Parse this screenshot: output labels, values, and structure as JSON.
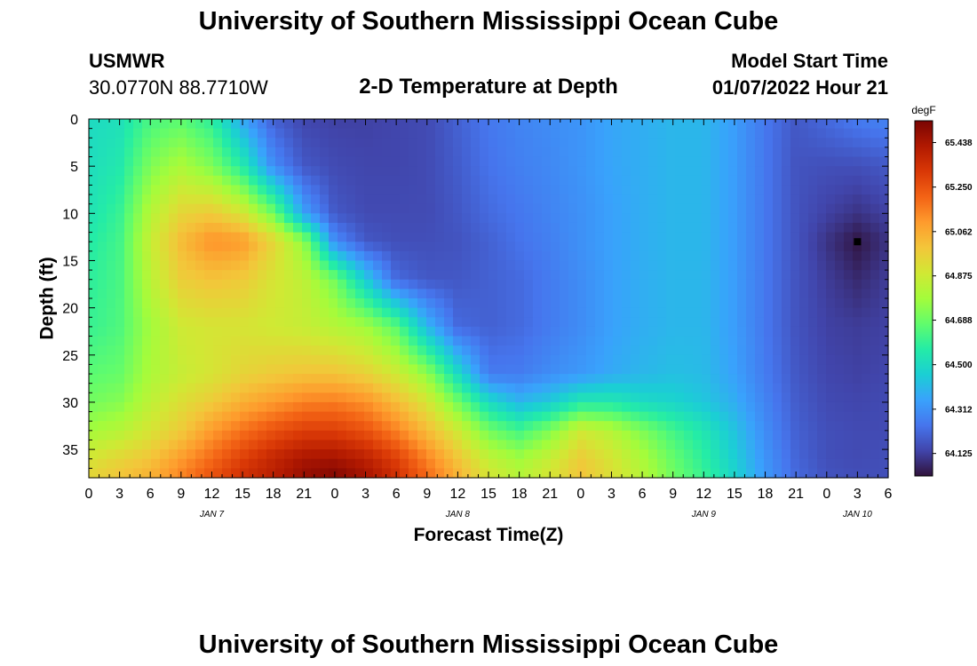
{
  "header": {
    "title": "University of Southern Mississippi Ocean Cube",
    "station": "USMWR",
    "coords": "30.0770N  88.7710W",
    "plot_title": "2-D Temperature at Depth",
    "model_label": "Model Start Time",
    "model_time": "01/07/2022 Hour 21"
  },
  "footer": {
    "title": "University of Southern Mississippi Ocean Cube"
  },
  "chart_data": {
    "type": "heatmap",
    "title": "2-D Temperature at Depth",
    "xlabel": "Forecast Time(Z)",
    "ylabel": "Depth (ft)",
    "x_tick_labels": [
      "0",
      "3",
      "6",
      "9",
      "12",
      "15",
      "18",
      "21",
      "0",
      "3",
      "6",
      "9",
      "12",
      "15",
      "18",
      "21",
      "0",
      "3",
      "6",
      "9",
      "12",
      "15",
      "18",
      "21",
      "0",
      "3",
      "6"
    ],
    "x_hours": [
      0,
      78
    ],
    "date_labels": [
      {
        "text": "JAN 7",
        "hour": 12
      },
      {
        "text": "JAN 8",
        "hour": 36
      },
      {
        "text": "JAN 9",
        "hour": 60
      },
      {
        "text": "JAN 10",
        "hour": 75
      }
    ],
    "y_ticks": [
      0,
      5,
      10,
      15,
      20,
      25,
      30,
      35
    ],
    "y_range": [
      0,
      38
    ],
    "y_reversed": true,
    "colorbar": {
      "unit": "degF",
      "range": [
        64.03,
        65.53
      ],
      "tick_values": [
        64.125,
        64.312,
        64.5,
        64.688,
        64.875,
        65.062,
        65.25,
        65.438
      ],
      "tick_labels": [
        "64.125",
        "64.312",
        "64.500",
        "64.688",
        "64.875",
        "65.062",
        "65.250",
        "65.438"
      ],
      "stops": [
        "#30123b",
        "#4145ab",
        "#4675ed",
        "#39a2fc",
        "#1bcfd4",
        "#24eca6",
        "#61fc6c",
        "#a4fc3b",
        "#d1e834",
        "#f3c63a",
        "#fe9b2d",
        "#f36315",
        "#d93806",
        "#b11901",
        "#7a0403"
      ]
    },
    "marker": {
      "hour": 75,
      "depth": 13
    },
    "depths": [
      0,
      5,
      10,
      13,
      17,
      22,
      27,
      30,
      33,
      36,
      38
    ],
    "columns": [
      {
        "hour": 0,
        "temps": [
          64.5,
          64.51,
          64.53,
          64.56,
          64.58,
          64.6,
          64.66,
          64.7,
          64.78,
          64.9,
          64.95
        ]
      },
      {
        "hour": 3,
        "temps": [
          64.52,
          64.55,
          64.6,
          64.62,
          64.63,
          64.64,
          64.68,
          64.73,
          64.82,
          64.95,
          65.0
        ]
      },
      {
        "hour": 6,
        "temps": [
          64.63,
          64.72,
          64.82,
          64.86,
          64.83,
          64.78,
          64.8,
          64.84,
          64.9,
          65.0,
          65.05
        ]
      },
      {
        "hour": 9,
        "temps": [
          64.66,
          64.8,
          64.95,
          65.02,
          64.97,
          64.88,
          64.86,
          64.92,
          64.98,
          65.1,
          65.15
        ]
      },
      {
        "hour": 12,
        "temps": [
          64.58,
          64.72,
          64.98,
          65.12,
          65.0,
          64.9,
          64.9,
          64.98,
          65.1,
          65.2,
          65.25
        ]
      },
      {
        "hour": 15,
        "temps": [
          64.36,
          64.56,
          64.9,
          65.1,
          64.98,
          64.9,
          64.95,
          65.05,
          65.18,
          65.3,
          65.35
        ]
      },
      {
        "hour": 18,
        "temps": [
          64.2,
          64.3,
          64.7,
          64.95,
          64.9,
          64.88,
          64.98,
          65.1,
          65.25,
          65.38,
          65.4
        ]
      },
      {
        "hour": 21,
        "temps": [
          64.14,
          64.18,
          64.35,
          64.75,
          64.84,
          64.86,
          65.0,
          65.15,
          65.3,
          65.44,
          65.48
        ]
      },
      {
        "hour": 24,
        "temps": [
          64.13,
          64.15,
          64.18,
          64.3,
          64.7,
          64.82,
          65.0,
          65.16,
          65.3,
          65.45,
          65.52
        ]
      },
      {
        "hour": 27,
        "temps": [
          64.13,
          64.14,
          64.15,
          64.18,
          64.45,
          64.78,
          64.96,
          65.12,
          65.25,
          65.4,
          65.45
        ]
      },
      {
        "hour": 30,
        "temps": [
          64.14,
          64.14,
          64.15,
          64.16,
          64.22,
          64.66,
          64.88,
          65.02,
          65.15,
          65.3,
          65.35
        ]
      },
      {
        "hour": 33,
        "temps": [
          64.15,
          64.15,
          64.15,
          64.16,
          64.18,
          64.4,
          64.75,
          64.9,
          65.02,
          65.15,
          65.2
        ]
      },
      {
        "hour": 36,
        "temps": [
          64.2,
          64.19,
          64.18,
          64.17,
          64.18,
          64.22,
          64.5,
          64.7,
          64.88,
          65.0,
          65.05
        ]
      },
      {
        "hour": 39,
        "temps": [
          64.25,
          64.24,
          64.22,
          64.2,
          64.2,
          64.2,
          64.26,
          64.5,
          64.7,
          64.85,
          64.9
        ]
      },
      {
        "hour": 42,
        "temps": [
          64.28,
          64.27,
          64.25,
          64.24,
          64.22,
          64.22,
          64.26,
          64.4,
          64.62,
          64.78,
          64.82
        ]
      },
      {
        "hour": 45,
        "temps": [
          64.3,
          64.29,
          64.28,
          64.27,
          64.26,
          64.26,
          64.3,
          64.45,
          64.72,
          64.86,
          64.9
        ]
      },
      {
        "hour": 48,
        "temps": [
          64.32,
          64.32,
          64.31,
          64.31,
          64.3,
          64.3,
          64.33,
          64.55,
          64.88,
          64.98,
          65.0
        ]
      },
      {
        "hour": 51,
        "temps": [
          64.36,
          64.36,
          64.35,
          64.35,
          64.35,
          64.35,
          64.37,
          64.55,
          64.82,
          64.9,
          64.92
        ]
      },
      {
        "hour": 54,
        "temps": [
          64.38,
          64.38,
          64.38,
          64.38,
          64.38,
          64.38,
          64.4,
          64.5,
          64.72,
          64.8,
          64.82
        ]
      },
      {
        "hour": 57,
        "temps": [
          64.4,
          64.4,
          64.4,
          64.4,
          64.4,
          64.4,
          64.42,
          64.48,
          64.62,
          64.68,
          64.7
        ]
      },
      {
        "hour": 60,
        "temps": [
          64.4,
          64.4,
          64.4,
          64.4,
          64.4,
          64.4,
          64.41,
          64.44,
          64.54,
          64.58,
          64.6
        ]
      },
      {
        "hour": 63,
        "temps": [
          64.34,
          64.34,
          64.34,
          64.34,
          64.34,
          64.34,
          64.35,
          64.38,
          64.43,
          64.46,
          64.48
        ]
      },
      {
        "hour": 66,
        "temps": [
          64.25,
          64.25,
          64.25,
          64.25,
          64.25,
          64.25,
          64.26,
          64.28,
          64.3,
          64.32,
          64.33
        ]
      },
      {
        "hour": 69,
        "temps": [
          64.18,
          64.17,
          64.17,
          64.17,
          64.17,
          64.17,
          64.18,
          64.19,
          64.2,
          64.21,
          64.22
        ]
      },
      {
        "hour": 72,
        "temps": [
          64.22,
          64.16,
          64.13,
          64.1,
          64.12,
          64.13,
          64.14,
          64.15,
          64.16,
          64.16,
          64.17
        ]
      },
      {
        "hour": 75,
        "temps": [
          64.26,
          64.16,
          64.1,
          64.04,
          64.08,
          64.12,
          64.13,
          64.14,
          64.15,
          64.15,
          64.16
        ]
      },
      {
        "hour": 78,
        "temps": [
          64.28,
          64.18,
          64.13,
          64.1,
          64.12,
          64.13,
          64.14,
          64.15,
          64.15,
          64.16,
          64.16
        ]
      }
    ]
  }
}
